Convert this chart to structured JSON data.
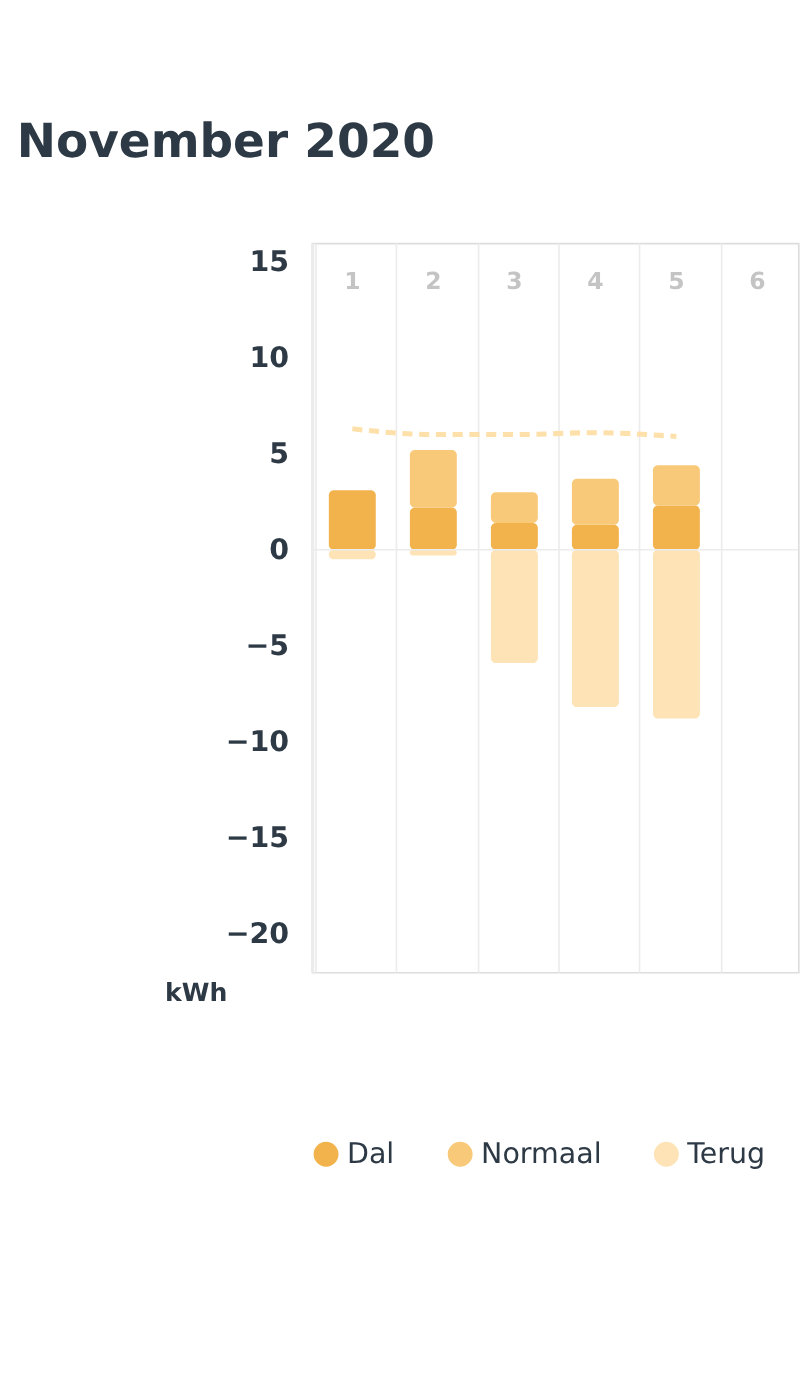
{
  "chart_data": {
    "type": "bar",
    "title": "November 2020",
    "ylabel": "kWh",
    "categories": [
      "1",
      "2",
      "3",
      "4",
      "5",
      "6"
    ],
    "stacked": true,
    "series": [
      {
        "name": "Dal",
        "color": "#f2b24c",
        "values": [
          3.1,
          2.2,
          1.4,
          1.3,
          2.3,
          null
        ]
      },
      {
        "name": "Normaal",
        "color": "#f9c97a",
        "values": [
          0,
          3.0,
          1.6,
          2.4,
          2.1,
          null
        ]
      },
      {
        "name": "Terug",
        "color": "#fde3b5",
        "values": [
          -0.5,
          -0.3,
          -5.9,
          -8.2,
          -8.8,
          null
        ]
      },
      {
        "type": "line",
        "color": "#fde0aa",
        "line_style": "dashed",
        "values": [
          6.3,
          6.0,
          6.0,
          6.1,
          5.9,
          null
        ]
      }
    ],
    "ylim": [
      -22,
      16
    ],
    "yticks": [
      -20,
      -15,
      -10,
      -5,
      0,
      5,
      10,
      15
    ],
    "ref_lines": [
      {
        "axis": "y",
        "value": 0,
        "color": "#ececec"
      }
    ],
    "grid": "x",
    "legend": "bottom"
  }
}
